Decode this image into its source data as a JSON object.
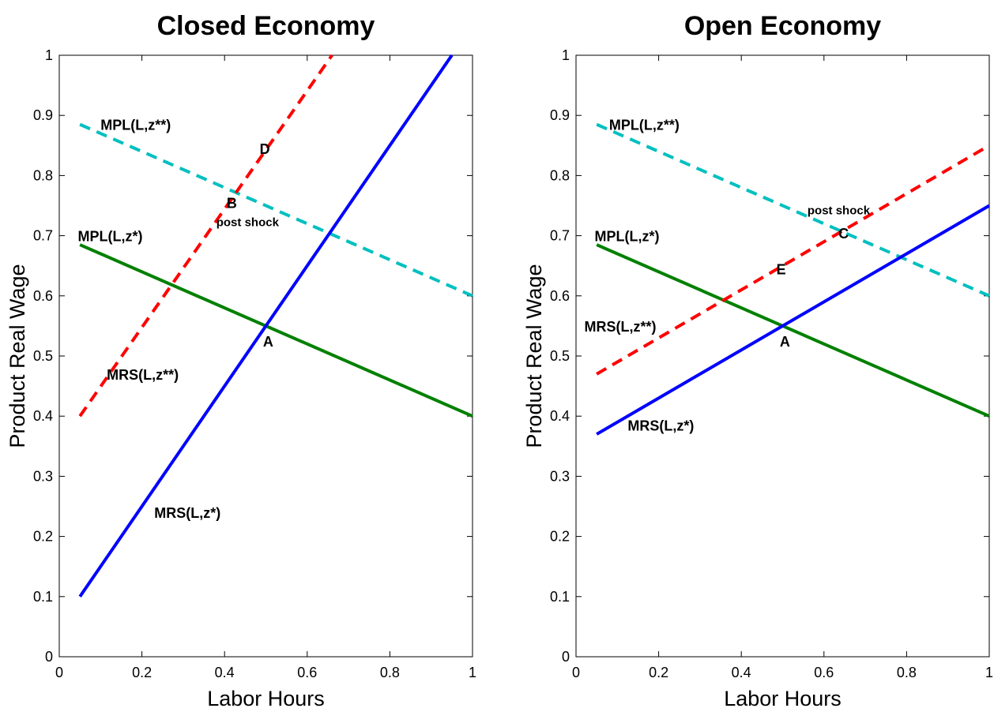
{
  "chart_data": [
    {
      "type": "line",
      "title": "Closed Economy",
      "xlabel": "Labor Hours",
      "ylabel": "Product Real Wage",
      "xlim": [
        0,
        1
      ],
      "ylim": [
        0,
        1
      ],
      "xticks": [
        "0",
        "0.2",
        "0.4",
        "0.6",
        "0.8",
        "1"
      ],
      "yticks": [
        "0",
        "0.1",
        "0.2",
        "0.3",
        "0.4",
        "0.5",
        "0.6",
        "0.7",
        "0.8",
        "0.9",
        "1"
      ],
      "grid": false,
      "series": [
        {
          "name": "MPL(L,z*)",
          "color": "#008000",
          "dash": "solid",
          "x": [
            0.05,
            1.0
          ],
          "y": [
            0.685,
            0.4
          ]
        },
        {
          "name": "MPL(L,z**)",
          "color": "#00bfbf",
          "dash": "dashed",
          "x": [
            0.05,
            1.0
          ],
          "y": [
            0.885,
            0.6
          ]
        },
        {
          "name": "MRS(L,z*)",
          "color": "#0000ff",
          "dash": "solid",
          "x": [
            0.05,
            0.95
          ],
          "y": [
            0.1,
            1.0
          ]
        },
        {
          "name": "MRS(L,z**)",
          "color": "#ff0000",
          "dash": "dashed",
          "x": [
            0.05,
            0.66
          ],
          "y": [
            0.4,
            1.0
          ]
        }
      ],
      "annotations": [
        {
          "text": "MPL(L,z**)",
          "x": 0.1,
          "y": 0.885,
          "size": "normal"
        },
        {
          "text": "MPL(L,z*)",
          "x": 0.045,
          "y": 0.7,
          "size": "normal"
        },
        {
          "text": "MRS(L,z**)",
          "x": 0.115,
          "y": 0.47,
          "size": "normal"
        },
        {
          "text": "MRS(L,z*)",
          "x": 0.23,
          "y": 0.24,
          "size": "normal"
        },
        {
          "text": "D",
          "x": 0.485,
          "y": 0.845,
          "size": "normal"
        },
        {
          "text": "B",
          "x": 0.405,
          "y": 0.755,
          "size": "normal"
        },
        {
          "text": "post shock",
          "x": 0.38,
          "y": 0.725,
          "size": "small"
        },
        {
          "text": "A",
          "x": 0.493,
          "y": 0.525,
          "size": "normal"
        }
      ]
    },
    {
      "type": "line",
      "title": "Open Economy",
      "xlabel": "Labor Hours",
      "ylabel": "Product Real Wage",
      "xlim": [
        0,
        1
      ],
      "ylim": [
        0,
        1
      ],
      "xticks": [
        "0",
        "0.2",
        "0.4",
        "0.6",
        "0.8",
        "1"
      ],
      "yticks": [
        "0",
        "0.1",
        "0.2",
        "0.3",
        "0.4",
        "0.5",
        "0.6",
        "0.7",
        "0.8",
        "0.9",
        "1"
      ],
      "grid": false,
      "series": [
        {
          "name": "MPL(L,z*)",
          "color": "#008000",
          "dash": "solid",
          "x": [
            0.05,
            1.0
          ],
          "y": [
            0.685,
            0.4
          ]
        },
        {
          "name": "MPL(L,z**)",
          "color": "#00bfbf",
          "dash": "dashed",
          "x": [
            0.05,
            1.0
          ],
          "y": [
            0.885,
            0.6
          ]
        },
        {
          "name": "MRS(L,z*)",
          "color": "#0000ff",
          "dash": "solid",
          "x": [
            0.05,
            1.0
          ],
          "y": [
            0.37,
            0.75
          ]
        },
        {
          "name": "MRS(L,z**)",
          "color": "#ff0000",
          "dash": "dashed",
          "x": [
            0.05,
            1.0
          ],
          "y": [
            0.47,
            0.85
          ]
        }
      ],
      "annotations": [
        {
          "text": "MPL(L,z**)",
          "x": 0.08,
          "y": 0.885,
          "size": "normal"
        },
        {
          "text": "MPL(L,z*)",
          "x": 0.045,
          "y": 0.7,
          "size": "normal"
        },
        {
          "text": "MRS(L,z**)",
          "x": 0.02,
          "y": 0.55,
          "size": "normal"
        },
        {
          "text": "MRS(L,z*)",
          "x": 0.125,
          "y": 0.385,
          "size": "normal"
        },
        {
          "text": "post shock",
          "x": 0.56,
          "y": 0.745,
          "size": "small"
        },
        {
          "text": "C",
          "x": 0.635,
          "y": 0.705,
          "size": "normal"
        },
        {
          "text": "E",
          "x": 0.485,
          "y": 0.645,
          "size": "normal"
        },
        {
          "text": "A",
          "x": 0.493,
          "y": 0.525,
          "size": "normal"
        }
      ]
    }
  ]
}
